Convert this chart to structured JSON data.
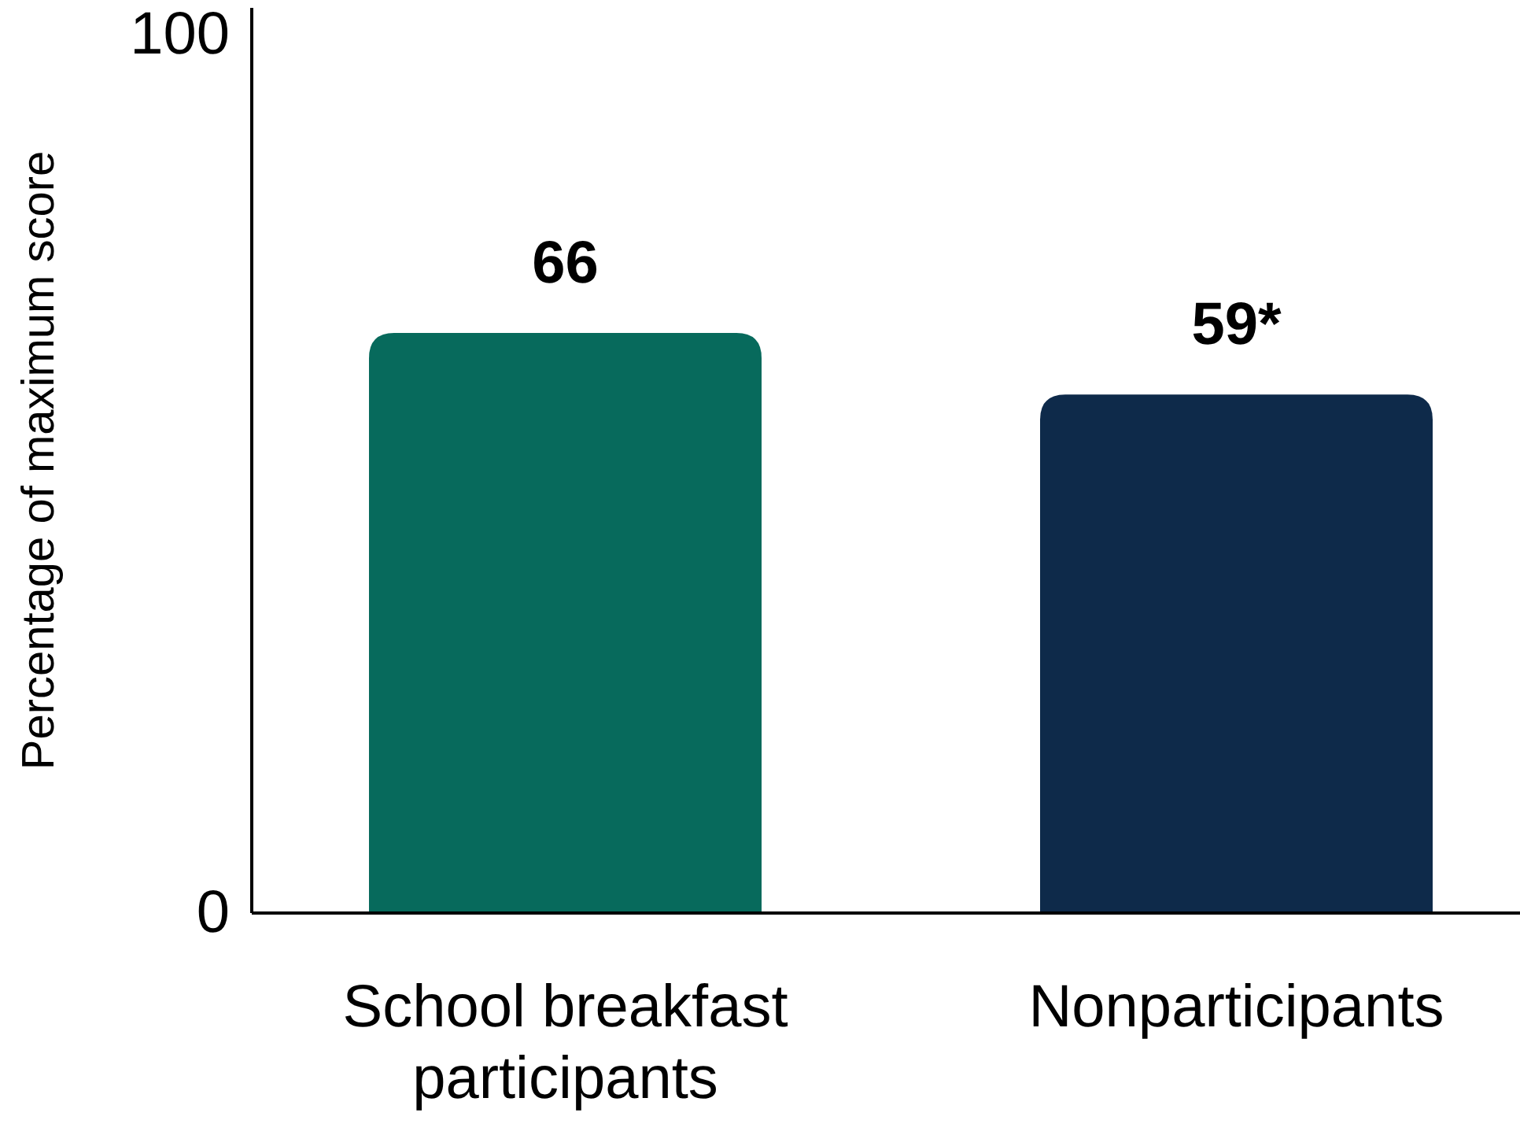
{
  "chart_data": {
    "type": "bar",
    "ylabel": "Percentage of maximum score",
    "categories": [
      "School breakfast participants",
      "Nonparticipants"
    ],
    "values": [
      66,
      59
    ],
    "colors": [
      "#076a5c",
      "#0e2a4a"
    ],
    "value_labels": [
      "66",
      "59*"
    ],
    "ylim": [
      0,
      103
    ],
    "yticks": [
      0,
      100
    ],
    "grid": false
  }
}
